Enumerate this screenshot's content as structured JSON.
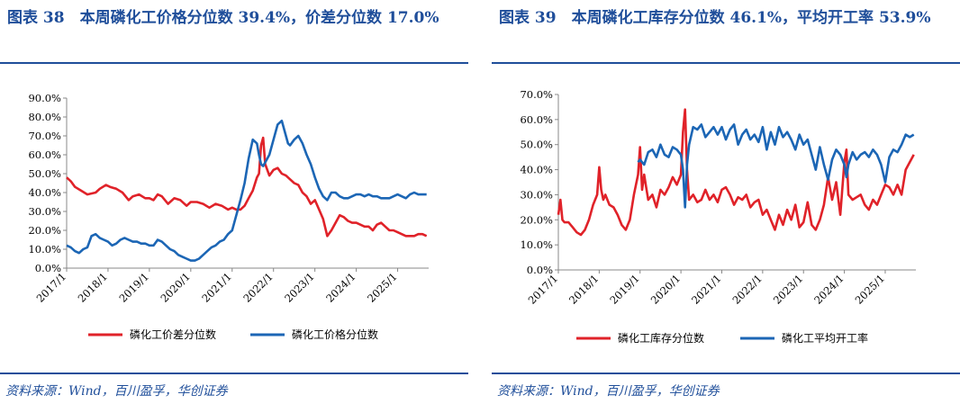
{
  "colors": {
    "accent": "#1f4e9a",
    "red": "#e02229",
    "blue": "#1c66b5"
  },
  "left": {
    "title": "图表 38　本周磷化工价格分位数 39.4%，价差分位数 17.0%",
    "source": "资料来源：Wind，百川盈孚，华创证券"
  },
  "right": {
    "title": "图表 39　本周磷化工库存分位数 46.1%，平均开工率 53.9%",
    "source": "资料来源：Wind，百川盈孚，华创证券"
  },
  "chart_data": [
    {
      "type": "line",
      "yticks": [
        "0.0%",
        "10.0%",
        "20.0%",
        "30.0%",
        "40.0%",
        "50.0%",
        "60.0%",
        "70.0%",
        "80.0%",
        "90.0%"
      ],
      "ylim": [
        0,
        90
      ],
      "xticks": [
        "2017/1",
        "2018/1",
        "2019/1",
        "2020/1",
        "2021/1",
        "2022/1",
        "2023/1",
        "2024/1",
        "2025/1"
      ],
      "xlim": [
        2017.0,
        2025.75
      ],
      "series": [
        {
          "name": "磷化工价差分位数",
          "color": "#e02229",
          "x": [
            2017.0,
            2017.1,
            2017.2,
            2017.35,
            2017.5,
            2017.7,
            2017.8,
            2017.95,
            2018.05,
            2018.2,
            2018.35,
            2018.5,
            2018.6,
            2018.75,
            2018.9,
            2019.0,
            2019.1,
            2019.2,
            2019.3,
            2019.45,
            2019.6,
            2019.75,
            2019.9,
            2020.0,
            2020.15,
            2020.3,
            2020.45,
            2020.6,
            2020.75,
            2020.9,
            2021.0,
            2021.1,
            2021.2,
            2021.3,
            2021.4,
            2021.5,
            2021.6,
            2021.65,
            2021.7,
            2021.75,
            2021.8,
            2021.9,
            2022.0,
            2022.1,
            2022.2,
            2022.3,
            2022.4,
            2022.5,
            2022.6,
            2022.7,
            2022.8,
            2022.9,
            2023.0,
            2023.1,
            2023.2,
            2023.3,
            2023.4,
            2023.5,
            2023.6,
            2023.7,
            2023.8,
            2023.9,
            2024.0,
            2024.1,
            2024.2,
            2024.3,
            2024.4,
            2024.5,
            2024.6,
            2024.7,
            2024.8,
            2024.9,
            2025.0,
            2025.1,
            2025.2,
            2025.3,
            2025.4,
            2025.5,
            2025.6,
            2025.7
          ],
          "y": [
            48,
            46,
            43,
            41,
            39,
            40,
            42,
            44,
            43,
            42,
            40,
            36,
            38,
            39,
            37,
            37,
            36,
            39,
            38,
            34,
            37,
            36,
            33,
            35,
            35,
            34,
            32,
            34,
            33,
            31,
            32,
            31,
            31,
            33,
            37,
            41,
            48,
            50,
            65,
            69,
            55,
            49,
            52,
            53,
            50,
            49,
            47,
            45,
            44,
            40,
            38,
            34,
            36,
            31,
            26,
            17,
            20,
            24,
            28,
            27,
            25,
            24,
            24,
            23,
            22,
            22,
            20,
            23,
            24,
            22,
            20,
            20,
            19,
            18,
            17,
            17,
            17,
            18,
            18,
            17
          ]
        },
        {
          "name": "磷化工价格分位数",
          "color": "#1c66b5",
          "x": [
            2017.0,
            2017.1,
            2017.2,
            2017.3,
            2017.4,
            2017.5,
            2017.6,
            2017.7,
            2017.8,
            2017.9,
            2018.0,
            2018.1,
            2018.2,
            2018.3,
            2018.4,
            2018.5,
            2018.6,
            2018.7,
            2018.8,
            2018.9,
            2019.0,
            2019.1,
            2019.2,
            2019.3,
            2019.4,
            2019.5,
            2019.6,
            2019.7,
            2019.8,
            2019.9,
            2020.0,
            2020.1,
            2020.2,
            2020.3,
            2020.4,
            2020.5,
            2020.6,
            2020.7,
            2020.8,
            2020.9,
            2021.0,
            2021.1,
            2021.2,
            2021.3,
            2021.4,
            2021.5,
            2021.6,
            2021.65,
            2021.7,
            2021.75,
            2021.8,
            2021.85,
            2021.9,
            2022.0,
            2022.1,
            2022.2,
            2022.3,
            2022.35,
            2022.4,
            2022.5,
            2022.6,
            2022.7,
            2022.8,
            2022.9,
            2023.0,
            2023.1,
            2023.2,
            2023.3,
            2023.4,
            2023.5,
            2023.6,
            2023.7,
            2023.8,
            2023.9,
            2024.0,
            2024.1,
            2024.2,
            2024.3,
            2024.4,
            2024.5,
            2024.6,
            2024.7,
            2024.8,
            2024.9,
            2025.0,
            2025.1,
            2025.2,
            2025.3,
            2025.4,
            2025.5,
            2025.6,
            2025.7
          ],
          "y": [
            12,
            11,
            9,
            8,
            10,
            11,
            17,
            18,
            16,
            15,
            14,
            12,
            13,
            15,
            16,
            15,
            14,
            14,
            13,
            13,
            12,
            12,
            15,
            14,
            12,
            10,
            9,
            7,
            6,
            5,
            4,
            4,
            5,
            7,
            9,
            11,
            12,
            14,
            15,
            18,
            20,
            28,
            36,
            45,
            58,
            68,
            66,
            60,
            55,
            54,
            56,
            58,
            60,
            68,
            76,
            78,
            70,
            66,
            65,
            68,
            70,
            66,
            60,
            55,
            48,
            42,
            38,
            36,
            40,
            40,
            38,
            37,
            37,
            38,
            39,
            39,
            38,
            39,
            38,
            38,
            37,
            37,
            37,
            38,
            39,
            38,
            37,
            39,
            40,
            39,
            39,
            39
          ]
        }
      ]
    },
    {
      "type": "line",
      "yticks": [
        "0.0%",
        "10.0%",
        "20.0%",
        "30.0%",
        "40.0%",
        "50.0%",
        "60.0%",
        "70.0%"
      ],
      "ylim": [
        0,
        70
      ],
      "xticks": [
        "2017/1",
        "2018/1",
        "2019/1",
        "2020/1",
        "2021/1",
        "2022/1",
        "2023/1",
        "2024/1",
        "2025/1"
      ],
      "xlim": [
        2017.0,
        2025.75
      ],
      "series": [
        {
          "name": "磷化工库存分位数",
          "color": "#e02229",
          "x": [
            2017.0,
            2017.05,
            2017.1,
            2017.15,
            2017.25,
            2017.35,
            2017.45,
            2017.55,
            2017.65,
            2017.75,
            2017.85,
            2017.95,
            2018.0,
            2018.05,
            2018.1,
            2018.15,
            2018.25,
            2018.35,
            2018.45,
            2018.55,
            2018.65,
            2018.75,
            2018.85,
            2018.95,
            2019.0,
            2019.05,
            2019.1,
            2019.15,
            2019.2,
            2019.3,
            2019.4,
            2019.5,
            2019.6,
            2019.7,
            2019.8,
            2019.9,
            2020.0,
            2020.05,
            2020.1,
            2020.15,
            2020.2,
            2020.3,
            2020.4,
            2020.5,
            2020.6,
            2020.7,
            2020.8,
            2020.9,
            2021.0,
            2021.1,
            2021.2,
            2021.3,
            2021.4,
            2021.5,
            2021.6,
            2021.7,
            2021.8,
            2021.9,
            2022.0,
            2022.1,
            2022.2,
            2022.3,
            2022.4,
            2022.5,
            2022.6,
            2022.7,
            2022.8,
            2022.9,
            2023.0,
            2023.1,
            2023.2,
            2023.3,
            2023.4,
            2023.5,
            2023.6,
            2023.7,
            2023.8,
            2023.9,
            2024.0,
            2024.05,
            2024.1,
            2024.2,
            2024.3,
            2024.4,
            2024.5,
            2024.6,
            2024.7,
            2024.8,
            2024.9,
            2025.0,
            2025.1,
            2025.2,
            2025.3,
            2025.4,
            2025.5,
            2025.6,
            2025.7
          ],
          "y": [
            22,
            28,
            20,
            19,
            19,
            17,
            15,
            14,
            16,
            20,
            26,
            30,
            41,
            32,
            28,
            30,
            26,
            25,
            22,
            18,
            16,
            20,
            30,
            38,
            49,
            32,
            38,
            33,
            28,
            30,
            25,
            32,
            30,
            33,
            37,
            34,
            38,
            55,
            64,
            40,
            28,
            30,
            27,
            28,
            32,
            28,
            30,
            27,
            32,
            33,
            30,
            26,
            29,
            28,
            30,
            25,
            27,
            28,
            22,
            24,
            20,
            16,
            22,
            18,
            24,
            20,
            26,
            17,
            19,
            27,
            18,
            16,
            20,
            26,
            37,
            28,
            35,
            22,
            43,
            48,
            30,
            28,
            29,
            30,
            26,
            24,
            28,
            26,
            30,
            34,
            33,
            30,
            34,
            30,
            40,
            43,
            46
          ]
        },
        {
          "name": "磷化工平均开工率",
          "color": "#1c66b5",
          "x": [
            2018.95,
            2019.0,
            2019.1,
            2019.2,
            2019.3,
            2019.4,
            2019.5,
            2019.6,
            2019.7,
            2019.8,
            2019.9,
            2020.0,
            2020.05,
            2020.1,
            2020.15,
            2020.2,
            2020.3,
            2020.4,
            2020.5,
            2020.6,
            2020.7,
            2020.8,
            2020.9,
            2021.0,
            2021.1,
            2021.2,
            2021.3,
            2021.4,
            2021.5,
            2021.6,
            2021.7,
            2021.8,
            2021.9,
            2022.0,
            2022.1,
            2022.2,
            2022.3,
            2022.4,
            2022.5,
            2022.6,
            2022.7,
            2022.8,
            2022.9,
            2023.0,
            2023.1,
            2023.2,
            2023.3,
            2023.4,
            2023.5,
            2023.6,
            2023.7,
            2023.8,
            2023.9,
            2024.0,
            2024.05,
            2024.1,
            2024.2,
            2024.3,
            2024.4,
            2024.5,
            2024.6,
            2024.7,
            2024.8,
            2024.9,
            2025.0,
            2025.1,
            2025.2,
            2025.3,
            2025.4,
            2025.5,
            2025.6,
            2025.7
          ],
          "y": [
            43,
            44,
            42,
            47,
            48,
            45,
            50,
            46,
            45,
            49,
            48,
            46,
            40,
            25,
            42,
            50,
            57,
            56,
            58,
            53,
            55,
            57,
            54,
            57,
            52,
            56,
            58,
            50,
            54,
            56,
            52,
            54,
            51,
            57,
            48,
            55,
            50,
            57,
            53,
            55,
            52,
            48,
            54,
            50,
            52,
            46,
            40,
            49,
            42,
            36,
            44,
            48,
            46,
            42,
            37,
            42,
            47,
            44,
            46,
            47,
            45,
            48,
            46,
            42,
            35,
            45,
            48,
            47,
            50,
            54,
            53,
            54
          ]
        }
      ]
    }
  ]
}
